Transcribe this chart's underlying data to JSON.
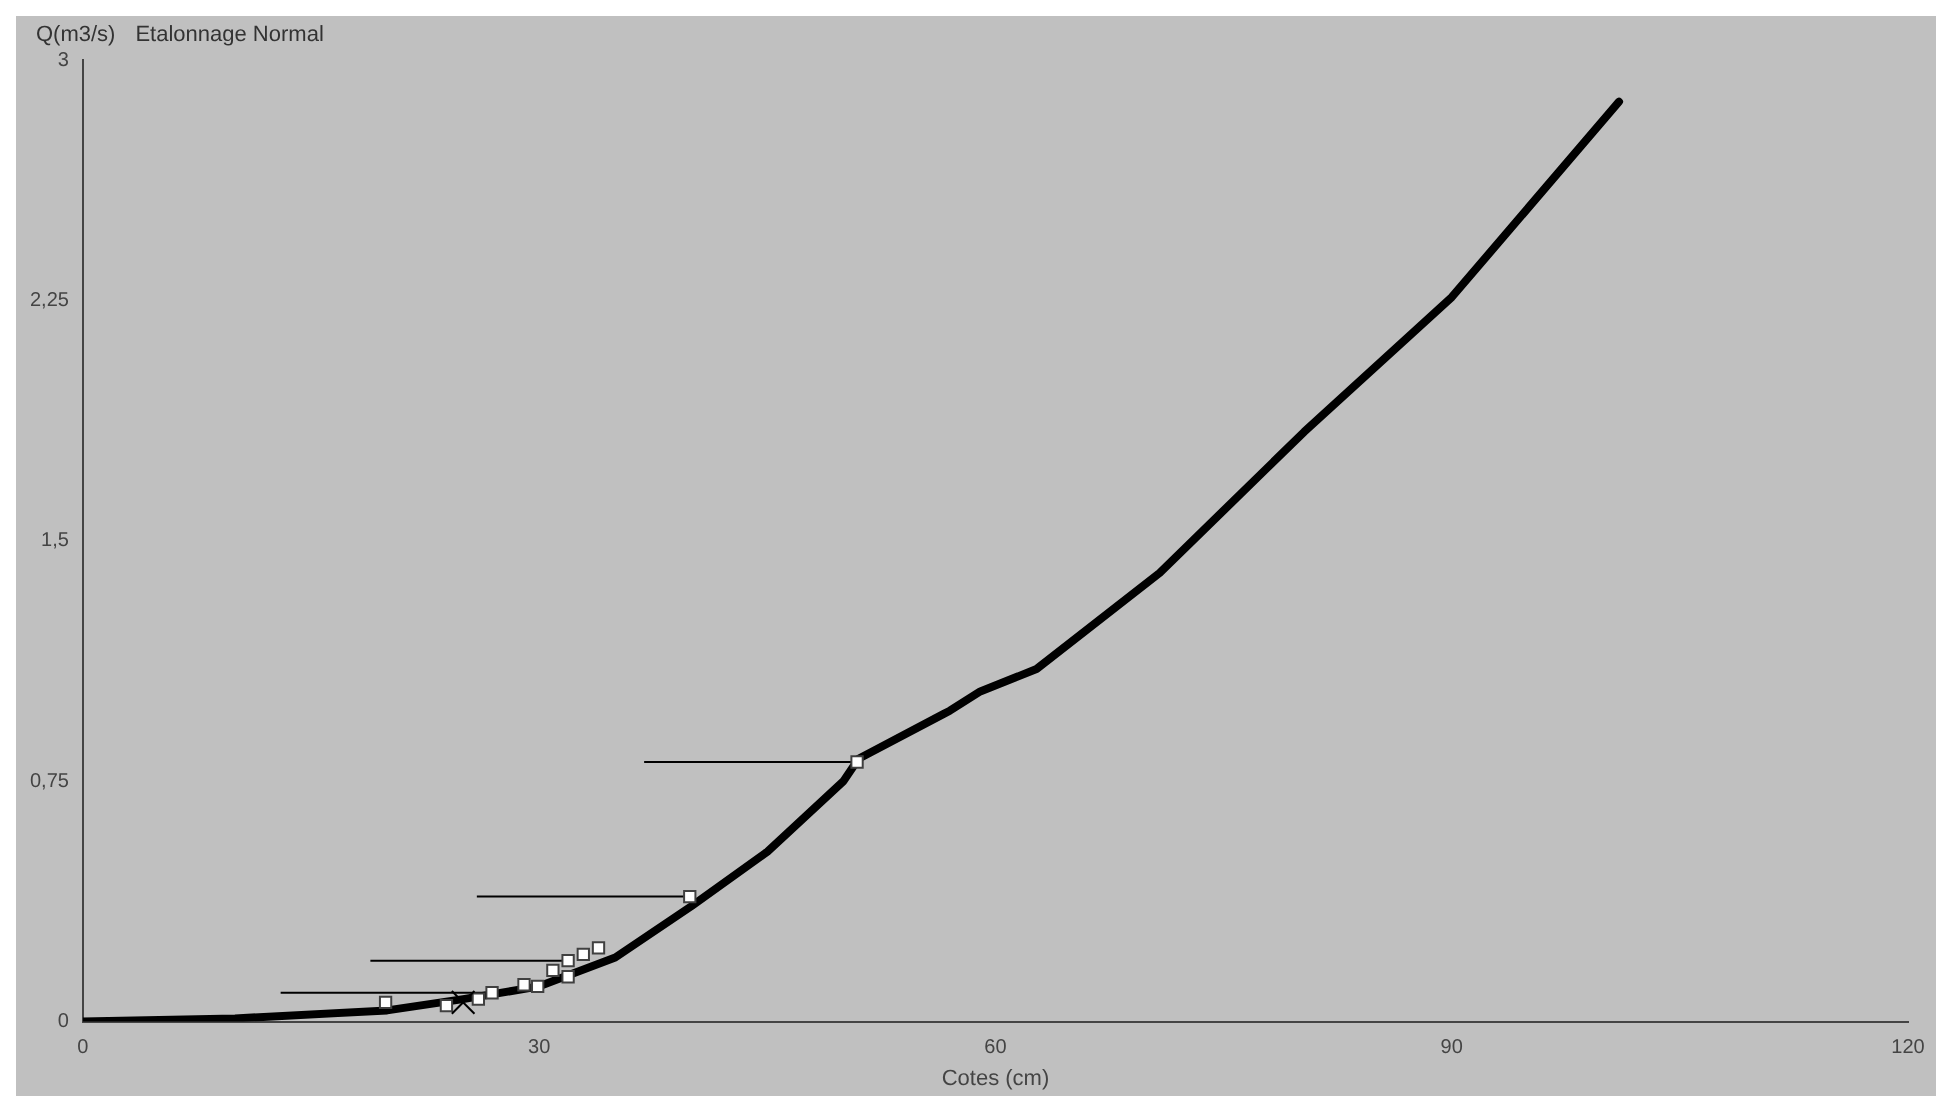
{
  "chart_data": {
    "type": "line",
    "title": "Etalonnage Normal",
    "ylabel": "Q(m3/s)",
    "xlabel": "Cotes (cm)",
    "xlim": [
      0,
      120
    ],
    "xticks": [
      0,
      30,
      60,
      90,
      120
    ],
    "ylim": [
      0,
      3
    ],
    "yticks": [
      0,
      {
        "value": 0.75,
        "label": "0,75"
      },
      {
        "value": 1.5,
        "label": "1,5"
      },
      {
        "value": 2.25,
        "label": "2,25"
      },
      3
    ],
    "grid": false,
    "legend": false,
    "line_style": "solid",
    "series": [
      {
        "color": "#000000",
        "marker": "none",
        "x": [
          0,
          10,
          20,
          25,
          30,
          35,
          40,
          45,
          50,
          51,
          56.6,
          57,
          59,
          62.7,
          70.8,
          80.3,
          90,
          101
        ],
        "values": [
          0,
          0.01,
          0.035,
          0.07,
          0.11,
          0.2,
          0.36,
          0.53,
          0.75,
          0.82,
          0.96,
          0.97,
          1.03,
          1.1,
          1.4,
          1.84,
          2.26,
          2.87
        ]
      },
      {
        "type": "scatter",
        "color": "#ffffff",
        "marker": "square",
        "x": [
          19.9,
          23.9,
          26,
          26.9,
          29,
          29.9,
          30.9,
          31.9,
          31.9,
          32.9,
          33.9,
          39.9,
          50.9
        ],
        "values": [
          0.06,
          0.05,
          0.07,
          0.09,
          0.115,
          0.11,
          0.16,
          0.19,
          0.14,
          0.21,
          0.23,
          0.39,
          0.81
        ],
        "xerrors": [
          null,
          null,
          null,
          [
            13,
            26.9
          ],
          null,
          null,
          null,
          [
            18.9,
            31.9
          ],
          null,
          null,
          null,
          [
            25.9,
            39.9
          ],
          [
            36.9,
            50.9
          ]
        ]
      },
      {
        "type": "scatter",
        "color": "#000000",
        "marker": "cross",
        "x": [
          25
        ],
        "values": [
          0.06
        ]
      }
    ]
  }
}
